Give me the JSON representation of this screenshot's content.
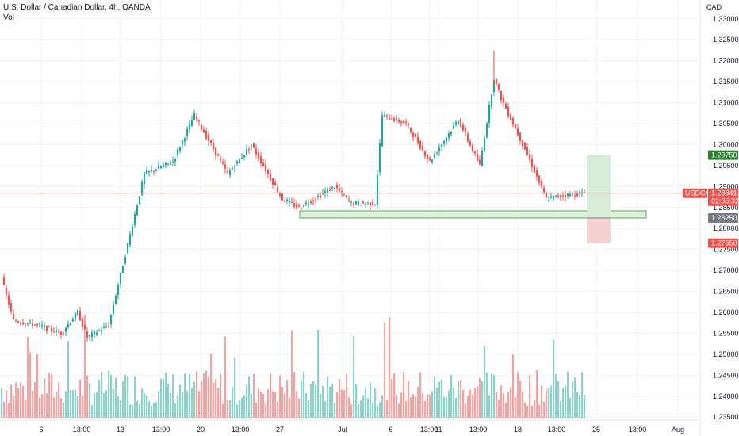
{
  "header": {
    "title": "U.S. Dollar / Canadian Dollar, 4h, OANDA",
    "volume_label": "Vol"
  },
  "axis": {
    "currency": "CAD"
  },
  "price_tag": {
    "symbol": "USDCAD",
    "price": "1.28841",
    "countdown": "02:35:32"
  },
  "levels": {
    "take_profit": "1.29750",
    "entry": "1.28250",
    "stop_loss": "1.27650"
  },
  "colors": {
    "up": "#26a69a",
    "down": "#ef5350",
    "up_vol": "#8fd1c9",
    "down_vol": "#f4a3a3",
    "tp_zone": "#d7ebd9",
    "sl_zone": "#f7d0d0",
    "support_zone": "#dff1da",
    "support_border": "#4caf50",
    "tag_symbol": "#ef5350",
    "tag_tp": "#2e7d32",
    "tag_entry": "#787b86",
    "tag_sl": "#ef5350"
  },
  "chart_data": {
    "type": "candlestick",
    "title": "U.S. Dollar / Canadian Dollar, 4h, OANDA",
    "ylim": [
      1.2305,
      1.3345
    ],
    "y_ticks": [
      "1.23500",
      "1.24000",
      "1.24500",
      "1.25000",
      "1.25500",
      "1.26000",
      "1.26500",
      "1.27000",
      "1.27500",
      "1.28000",
      "1.28500",
      "1.29000",
      "1.29500",
      "1.30000",
      "1.30500",
      "1.31000",
      "1.31500",
      "1.32000",
      "1.32500",
      "1.33000"
    ],
    "x_ticks": [
      "6",
      "13:00",
      "13",
      "13:00",
      "20",
      "13:00",
      "27",
      "Jul",
      "6",
      "13:00",
      "11",
      "13:00",
      "18",
      "13:00",
      "25",
      "13:00",
      "Aug"
    ],
    "grid": true,
    "waypoints": [
      {
        "i": 0,
        "p": 1.268
      },
      {
        "i": 5,
        "p": 1.258
      },
      {
        "i": 15,
        "p": 1.257
      },
      {
        "i": 25,
        "p": 1.255
      },
      {
        "i": 32,
        "p": 1.26
      },
      {
        "i": 36,
        "p": 1.254
      },
      {
        "i": 45,
        "p": 1.257
      },
      {
        "i": 60,
        "p": 1.293
      },
      {
        "i": 72,
        "p": 1.296
      },
      {
        "i": 81,
        "p": 1.307
      },
      {
        "i": 95,
        "p": 1.293
      },
      {
        "i": 105,
        "p": 1.3
      },
      {
        "i": 118,
        "p": 1.287
      },
      {
        "i": 125,
        "p": 1.285
      },
      {
        "i": 140,
        "p": 1.29
      },
      {
        "i": 147,
        "p": 1.286
      },
      {
        "i": 157,
        "p": 1.286
      },
      {
        "i": 160,
        "p": 1.307
      },
      {
        "i": 170,
        "p": 1.305
      },
      {
        "i": 180,
        "p": 1.296
      },
      {
        "i": 192,
        "p": 1.306
      },
      {
        "i": 201,
        "p": 1.295
      },
      {
        "i": 207,
        "p": 1.316
      },
      {
        "i": 210,
        "p": 1.311
      },
      {
        "i": 220,
        "p": 1.299
      },
      {
        "i": 229,
        "p": 1.287
      },
      {
        "i": 236,
        "p": 1.288
      },
      {
        "i": 245,
        "p": 1.2884
      }
    ],
    "volume_range": [
      0,
      100
    ],
    "levels": {
      "support_zone": [
        1.2825,
        1.2842
      ],
      "take_profit": 1.2975,
      "entry": 1.2825,
      "stop_loss": 1.2765,
      "last": 1.28841
    }
  }
}
